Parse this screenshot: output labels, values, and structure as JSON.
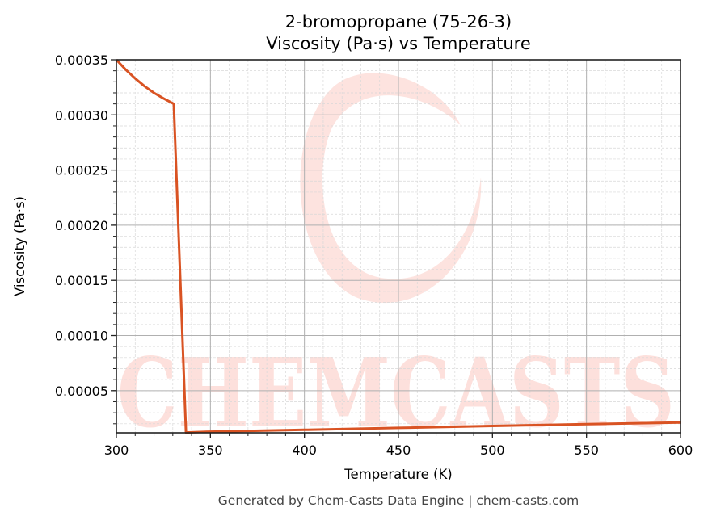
{
  "title": {
    "line1": "2-bromopropane (75-26-3)",
    "line2": "Viscosity (Pa·s) vs Temperature"
  },
  "footer": "Generated by Chem-Casts Data Engine | chem-casts.com",
  "watermark": {
    "text": "CHEMCASTS",
    "color": "#fde0dc"
  },
  "colors": {
    "line": "#d95323",
    "grid_major": "#b0b0b0",
    "grid_minor": "#d8d8d8",
    "axes": "#222222"
  },
  "chart_data": {
    "type": "line",
    "title": "2-bromopropane (75-26-3)\nViscosity (Pa·s) vs Temperature",
    "xlabel": "Temperature (K)",
    "ylabel": "Viscosity (Pa·s)",
    "xlim": [
      300,
      600
    ],
    "ylim": [
      1.18e-05,
      0.00035
    ],
    "x_ticks": [
      300,
      350,
      400,
      450,
      500,
      550,
      600
    ],
    "x_tick_labels": [
      "300",
      "350",
      "400",
      "450",
      "500",
      "550",
      "600"
    ],
    "y_ticks": [
      5e-05,
      0.0001,
      0.00015,
      0.0002,
      0.00025,
      0.0003,
      0.00035
    ],
    "y_tick_labels": [
      "0.00005",
      "0.00010",
      "0.00015",
      "0.00020",
      "0.00025",
      "0.00030",
      "0.00035"
    ],
    "grid": true,
    "minor_grid": true,
    "legend": null,
    "series": [
      {
        "name": "Viscosity",
        "x": [
          300,
          305,
          310,
          315,
          320,
          325,
          330.5,
          337,
          350,
          400,
          450,
          500,
          550,
          600
        ],
        "y": [
          0.00035,
          0.000341,
          0.000333,
          0.000326,
          0.00032,
          0.000315,
          0.00031,
          1.21e-05,
          1.28e-05,
          1.45e-05,
          1.63e-05,
          1.8e-05,
          1.96e-05,
          2.11e-05
        ]
      }
    ]
  }
}
